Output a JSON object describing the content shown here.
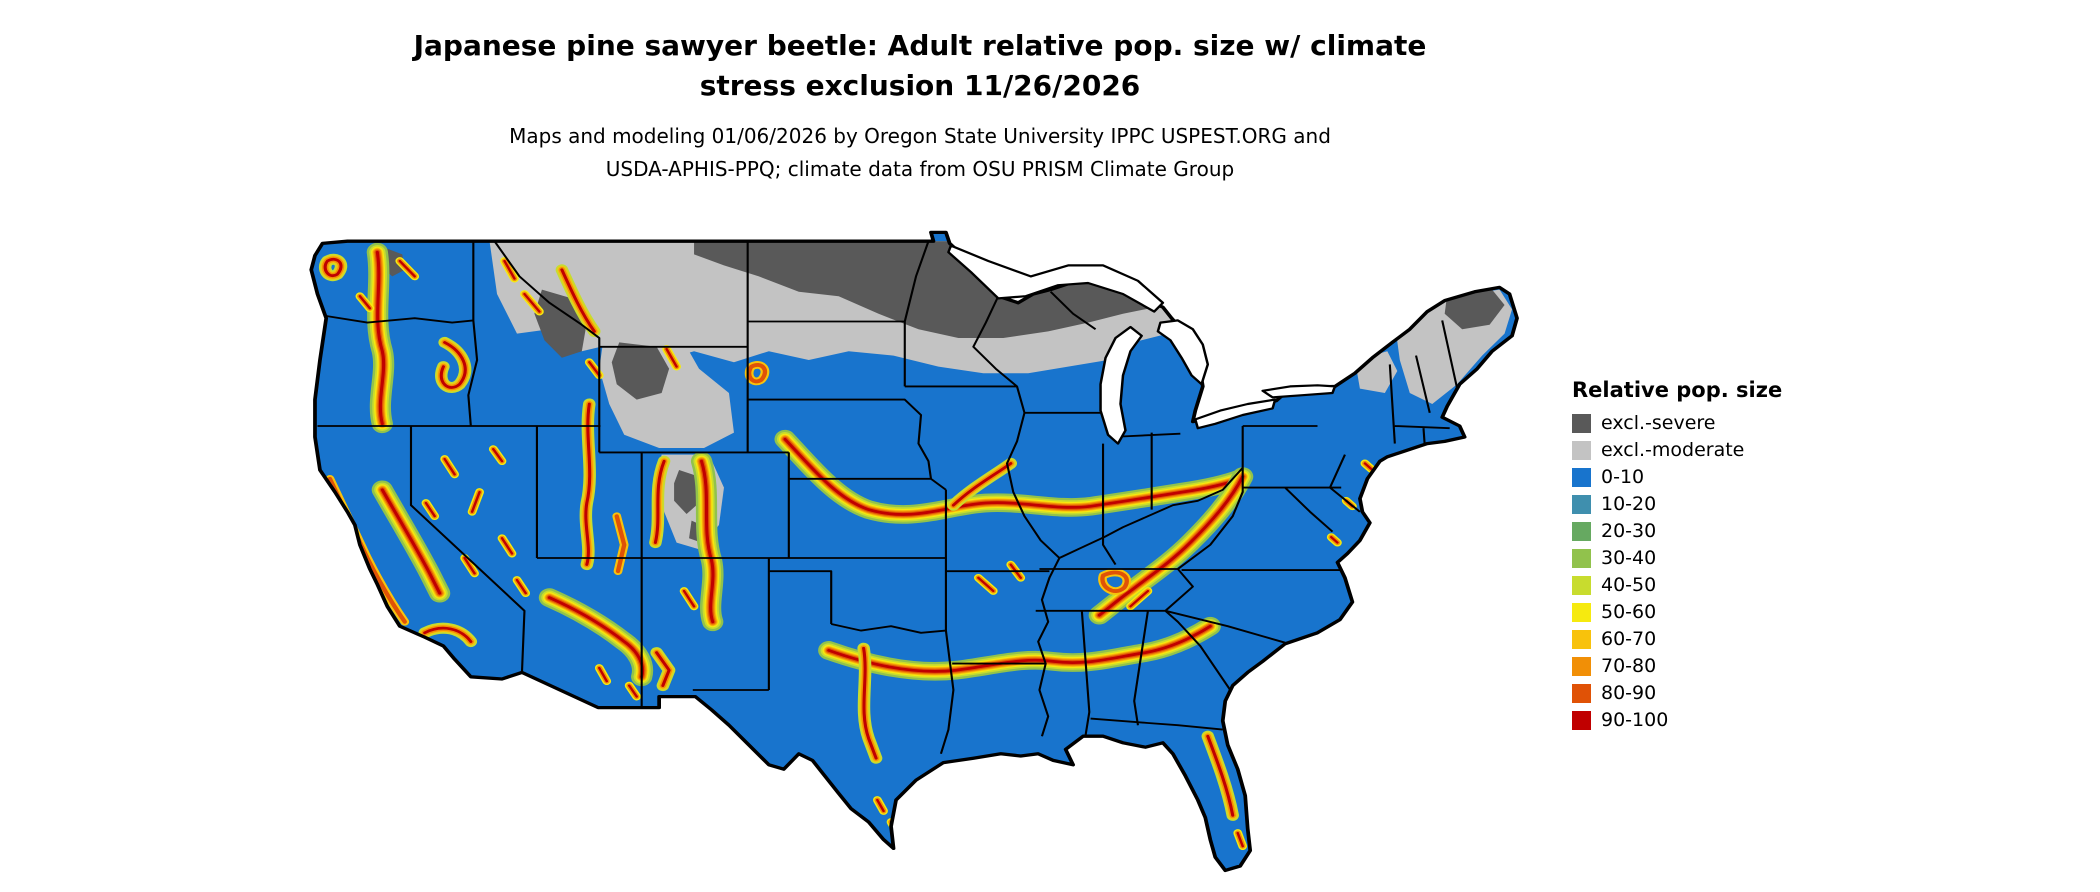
{
  "header": {
    "title_line1": "Japanese pine sawyer beetle: Adult relative pop. size w/ climate",
    "title_line2": "stress exclusion 11/26/2026",
    "subtitle_line1": "Maps and modeling 01/06/2026 by Oregon State University IPPC USPEST.ORG and",
    "subtitle_line2": "USDA-APHIS-PPQ; climate data from OSU PRISM Climate Group"
  },
  "legend": {
    "title": "Relative pop. size",
    "entries": [
      {
        "label": "excl.-severe",
        "color": "#595959"
      },
      {
        "label": "excl.-moderate",
        "color": "#c3c3c3"
      },
      {
        "label": "0-10",
        "color": "#1874cd"
      },
      {
        "label": "10-20",
        "color": "#3f8fae"
      },
      {
        "label": "20-30",
        "color": "#66a961"
      },
      {
        "label": "30-40",
        "color": "#91c24c"
      },
      {
        "label": "40-50",
        "color": "#c8dc2e"
      },
      {
        "label": "50-60",
        "color": "#f6ea0f"
      },
      {
        "label": "60-70",
        "color": "#f8c20c"
      },
      {
        "label": "70-80",
        "color": "#f18f06"
      },
      {
        "label": "80-90",
        "color": "#e05206"
      },
      {
        "label": "90-100",
        "color": "#c00000"
      }
    ]
  }
}
